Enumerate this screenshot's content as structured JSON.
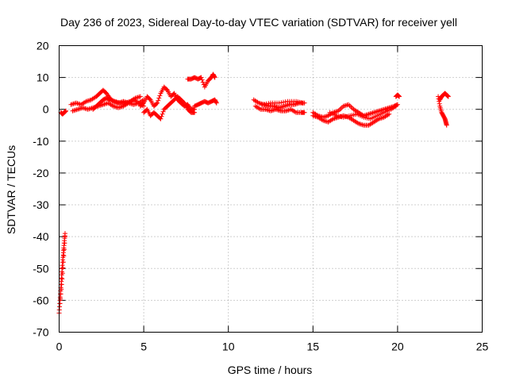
{
  "chart_data": {
    "type": "scatter",
    "title": "Day 236 of 2023, Sidereal Day-to-day VTEC variation (SDTVAR) for receiver yell",
    "xlabel": "GPS time / hours",
    "ylabel": "SDTVAR / TECUs",
    "xlim": [
      0,
      25
    ],
    "ylim": [
      -70,
      20
    ],
    "xticks": [
      0,
      5,
      10,
      15,
      20,
      25
    ],
    "xtick_labels": [
      "0",
      "5",
      "10",
      "15",
      "20",
      "25"
    ],
    "yticks": [
      -70,
      -60,
      -50,
      -40,
      -30,
      -20,
      -10,
      0,
      10,
      20
    ],
    "ytick_labels": [
      "-70",
      "-60",
      "-50",
      "-40",
      "-30",
      "-20",
      "-10",
      "0",
      "10",
      "20"
    ],
    "grid": true,
    "marker": "+",
    "marker_color": "#ff0000",
    "segments": [
      {
        "x": [
          0.0,
          0.05,
          0.1,
          0.15,
          0.2,
          0.25,
          0.3,
          0.35
        ],
        "y": [
          -64,
          -60,
          -56,
          -52,
          -48,
          -45,
          -42,
          -39
        ]
      },
      {
        "x": [
          0.05,
          0.15,
          0.25,
          0.35
        ],
        "y": [
          -61,
          -55,
          -48,
          -40
        ]
      },
      {
        "x": [
          0.1,
          0.2,
          0.3,
          0.4
        ],
        "y": [
          -1,
          -1.5,
          -1,
          -0.5
        ]
      },
      {
        "x": [
          0.7,
          1.0,
          1.3,
          1.6,
          1.9,
          2.2,
          2.4,
          2.6,
          2.8,
          3.0,
          3.2,
          3.5,
          3.8,
          4.1,
          4.4,
          4.7,
          5.0
        ],
        "y": [
          1.5,
          2,
          1.5,
          2.5,
          3,
          4,
          5,
          6,
          5,
          3.5,
          2.5,
          2,
          2.5,
          2,
          1.5,
          2,
          3
        ]
      },
      {
        "x": [
          0.8,
          1.1,
          1.4,
          1.7,
          2.0,
          2.3,
          2.6,
          2.9,
          3.2,
          3.5,
          3.8,
          4.1,
          4.4,
          4.7,
          5.0
        ],
        "y": [
          -0.5,
          0,
          0.5,
          0,
          0.5,
          1,
          1.5,
          2,
          1,
          0.5,
          1,
          2,
          3,
          2,
          1
        ]
      },
      {
        "x": [
          2.0,
          2.2,
          2.4,
          2.6,
          2.8,
          3.0,
          3.3,
          3.6,
          3.9,
          4.2,
          4.5,
          4.8
        ],
        "y": [
          0,
          1,
          2,
          3,
          3.5,
          3,
          2.5,
          2,
          2,
          2.5,
          3.5,
          4
        ]
      },
      {
        "x": [
          4.8,
          5.0,
          5.2,
          5.4,
          5.6,
          5.8,
          6.0,
          6.2,
          6.4,
          6.6,
          6.8,
          7.0,
          7.2,
          7.4,
          7.6,
          7.8,
          8.0
        ],
        "y": [
          1,
          2,
          4,
          3,
          1,
          2,
          5,
          7,
          6,
          4,
          5,
          3,
          2,
          1,
          1.5,
          0,
          0
        ]
      },
      {
        "x": [
          5.0,
          5.2,
          5.4,
          5.6,
          5.8,
          6.0,
          6.2,
          6.4,
          6.6,
          6.8,
          7.0,
          7.2,
          7.4,
          7.6,
          7.8,
          8.0
        ],
        "y": [
          -1,
          0,
          -2,
          -1,
          -2,
          -3,
          0,
          1,
          2,
          3,
          4,
          3,
          2,
          0,
          -1,
          -1
        ]
      },
      {
        "x": [
          7.6,
          7.8,
          8.0,
          8.2,
          8.4,
          8.6,
          8.8,
          9.0,
          9.1,
          9.2
        ],
        "y": [
          9.5,
          9.5,
          10,
          9.5,
          10,
          7,
          9,
          10,
          11,
          10
        ]
      },
      {
        "x": [
          8.0,
          8.2,
          8.4,
          8.6,
          8.8,
          9.0,
          9.2,
          9.3
        ],
        "y": [
          1,
          1.5,
          2,
          2.5,
          2,
          2.5,
          3,
          2
        ]
      },
      {
        "x": [
          11.5,
          11.8,
          12.1,
          12.4,
          12.7,
          13.0,
          13.3,
          13.6,
          13.9,
          14.2,
          14.5
        ],
        "y": [
          3,
          2,
          1.5,
          1,
          1,
          0.5,
          1,
          1.5,
          1.5,
          2,
          2
        ]
      },
      {
        "x": [
          11.6,
          11.9,
          12.2,
          12.5,
          12.8,
          13.1,
          13.4,
          13.7,
          14.0,
          14.3,
          14.5
        ],
        "y": [
          1,
          0,
          0,
          -0.5,
          0,
          -0.5,
          -0.5,
          0,
          -1,
          -1,
          -1
        ]
      },
      {
        "x": [
          12.0,
          12.5,
          13.0,
          13.5,
          14.0,
          14.4
        ],
        "y": [
          1.5,
          2,
          2,
          2.5,
          2.5,
          2
        ]
      },
      {
        "x": [
          15.0,
          15.3,
          15.6,
          15.9,
          16.2,
          16.5,
          16.8,
          17.1,
          17.4,
          17.7,
          18.0,
          18.3,
          18.6,
          18.9,
          19.2,
          19.5,
          19.8,
          20.0
        ],
        "y": [
          -1,
          -2,
          -2.5,
          -2,
          -1,
          -0.5,
          1,
          1.5,
          0,
          -1,
          -2,
          -1.5,
          -1,
          -0.5,
          0,
          0.5,
          1,
          1.5
        ]
      },
      {
        "x": [
          15.0,
          15.3,
          15.6,
          15.9,
          16.2,
          16.5,
          16.8,
          17.1,
          17.4,
          17.7,
          18.0,
          18.3,
          18.6,
          18.9,
          19.2,
          19.5
        ],
        "y": [
          -2,
          -2.5,
          -3.5,
          -4,
          -3,
          -2.5,
          -2,
          -2.5,
          -3.5,
          -4.5,
          -5,
          -5,
          -4,
          -3,
          -2.5,
          -1.5
        ]
      },
      {
        "x": [
          16.0,
          16.4,
          16.8,
          17.2,
          17.6,
          18.0,
          18.4,
          18.8,
          19.2,
          19.6,
          19.9
        ],
        "y": [
          -1,
          -2,
          -2.5,
          -2,
          -1.5,
          -2.5,
          -3,
          -2,
          -1,
          0,
          1
        ]
      },
      {
        "x": [
          19.9,
          20.0,
          20.1
        ],
        "y": [
          4,
          4.5,
          4
        ]
      },
      {
        "x": [
          22.4,
          22.5,
          22.6,
          22.7,
          22.8,
          22.85,
          22.9
        ],
        "y": [
          4,
          1,
          -1,
          -2,
          -3,
          -4,
          -5
        ]
      },
      {
        "x": [
          22.5,
          22.6,
          22.7,
          22.8,
          22.9,
          23.0
        ],
        "y": [
          3,
          4,
          4.5,
          5,
          4.5,
          4
        ]
      }
    ]
  }
}
